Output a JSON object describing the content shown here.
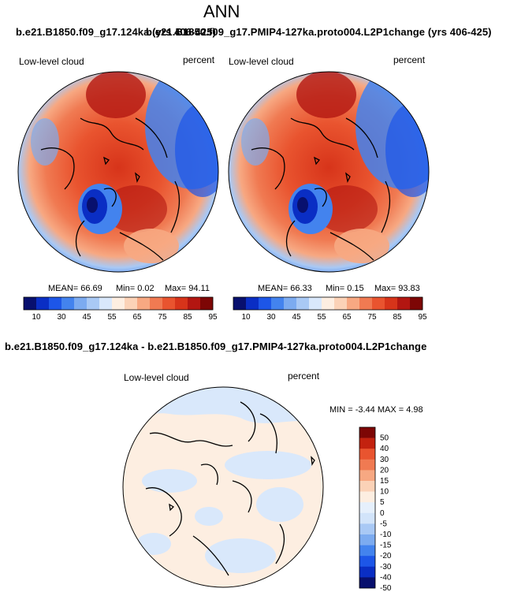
{
  "page": {
    "title": "ANN"
  },
  "colors": {
    "full": [
      "#08106e",
      "#0a2ec4",
      "#1d56e8",
      "#4383ee",
      "#7cabf0",
      "#a9c9f5",
      "#d9e8fb",
      "#fdeee1",
      "#fbd2b7",
      "#f7a882",
      "#f07a52",
      "#e9542f",
      "#d7341a",
      "#b31611",
      "#7d0605"
    ],
    "diff": [
      "#08106e",
      "#0a2ec4",
      "#1d56e8",
      "#4383ee",
      "#7cabf0",
      "#a9c9f5",
      "#d2e4fa",
      "#e6f0fc",
      "#fdeee1",
      "#fbd2b7",
      "#f7a882",
      "#f07a52",
      "#e9542f",
      "#c3220f",
      "#7d0605"
    ]
  },
  "chart_data": [
    {
      "type": "heatmap",
      "projection": "polar-stereographic",
      "case_title": "b.e21.B1850.f09_g17.124ka (yrs 406-425)",
      "variable_label": "Low-level cloud",
      "units_label": "percent",
      "stats": {
        "mean": "MEAN= 66.69",
        "min": "Min=  0.02",
        "max": "Max= 94.11"
      },
      "colorbar": {
        "levels": [
          5,
          10,
          20,
          30,
          40,
          45,
          50,
          55,
          60,
          65,
          70,
          75,
          80,
          85,
          90,
          95
        ],
        "tick_labels": [
          "10",
          "30",
          "45",
          "55",
          "65",
          "75",
          "85",
          "95"
        ]
      }
    },
    {
      "type": "heatmap",
      "projection": "polar-stereographic",
      "case_title": "b.e21.B1850.f09_g17.PMIP4-127ka.proto004.L2P1change (yrs 406-425)",
      "variable_label": "Low-level cloud",
      "units_label": "percent",
      "stats": {
        "mean": "MEAN= 66.33",
        "min": "Min=  0.15",
        "max": "Max= 93.83"
      },
      "colorbar": {
        "levels": [
          5,
          10,
          20,
          30,
          40,
          45,
          50,
          55,
          60,
          65,
          70,
          75,
          80,
          85,
          90,
          95
        ],
        "tick_labels": [
          "10",
          "30",
          "45",
          "55",
          "65",
          "75",
          "85",
          "95"
        ]
      }
    },
    {
      "type": "heatmap",
      "projection": "polar-stereographic",
      "case_title": "b.e21.B1850.f09_g17.124ka - b.e21.B1850.f09_g17.PMIP4-127ka.proto004.L2P1change",
      "variable_label": "Low-level cloud",
      "units_label": "percent",
      "stats": {
        "min_max": "MIN = -3.44 MAX =  4.98"
      },
      "colorbar": {
        "tick_labels": [
          "50",
          "40",
          "30",
          "20",
          "15",
          "10",
          "5",
          "0",
          "-5",
          "-10",
          "-15",
          "-20",
          "-30",
          "-40",
          "-50"
        ]
      }
    }
  ]
}
